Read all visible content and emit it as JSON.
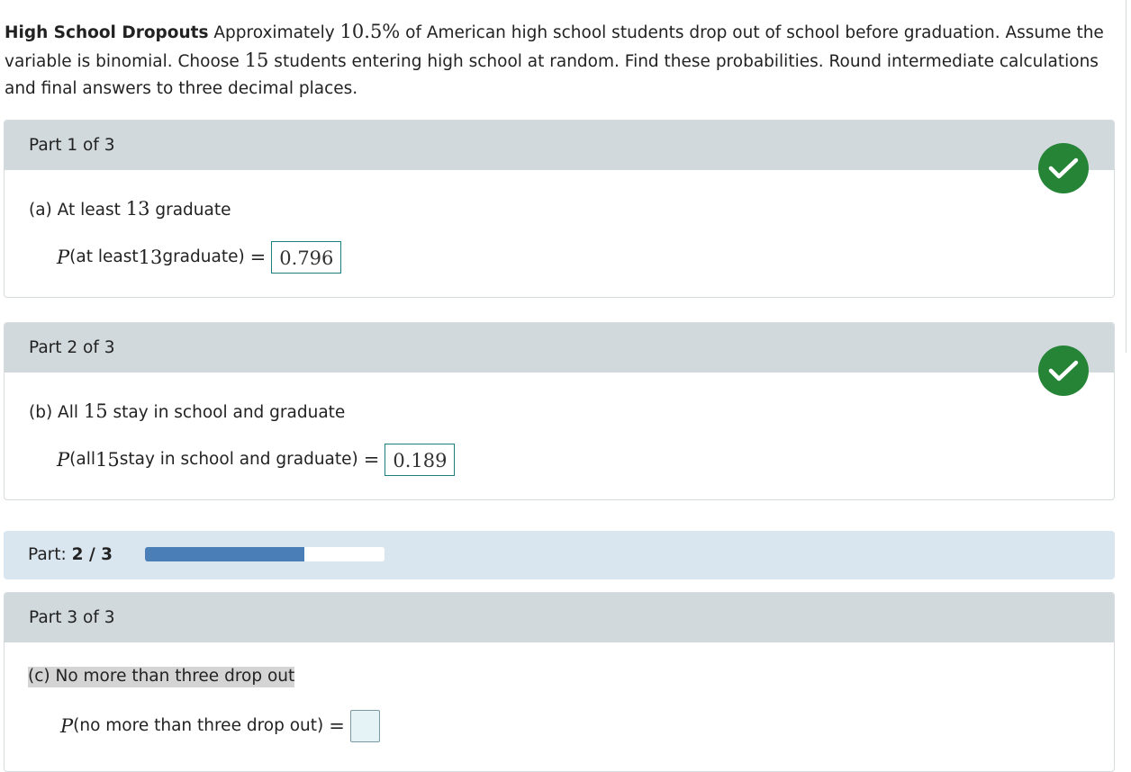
{
  "problem": {
    "title": "High School Dropouts",
    "text_1": " Approximately ",
    "pct": "10.5%",
    "text_2": " of American high school students drop out of school before graduation. Assume the variable is binomial. Choose ",
    "n": "15",
    "text_3": " students entering high school at random. Find these probabilities. Round intermediate calculations and final answers to three decimal places."
  },
  "parts": [
    {
      "header": "Part 1 of 3",
      "question_prefix": "(a) At least ",
      "question_num": "13",
      "question_suffix": " graduate",
      "p_label": "P",
      "p_open": "(at least ",
      "p_num": "13",
      "p_close": " graduate)",
      "equals": "=",
      "answer": "0.796",
      "status": "correct"
    },
    {
      "header": "Part 2 of 3",
      "question_prefix": "(b) All ",
      "question_num": "15",
      "question_suffix": " stay in school and graduate",
      "p_label": "P",
      "p_open": "(all ",
      "p_num": "15",
      "p_close": " stay in school and graduate)",
      "equals": "=",
      "answer": "0.189",
      "status": "correct"
    },
    {
      "header": "Part 3 of 3",
      "question": "(c) No more than three drop out",
      "p_label": "P",
      "p_text": "(no more than three drop out)",
      "equals": "=",
      "answer": ""
    }
  ],
  "progress": {
    "label": "Part: ",
    "value": "2 / 3",
    "fraction": 0.667
  },
  "colors": {
    "check_green": "#258436",
    "header_gray": "#d1d9dd",
    "progress_bg": "#d9e6ef",
    "progress_fill": "#4a7eb7",
    "answer_border": "#1b7f7f"
  },
  "icons": {
    "status": "checkmark-circle-icon"
  }
}
